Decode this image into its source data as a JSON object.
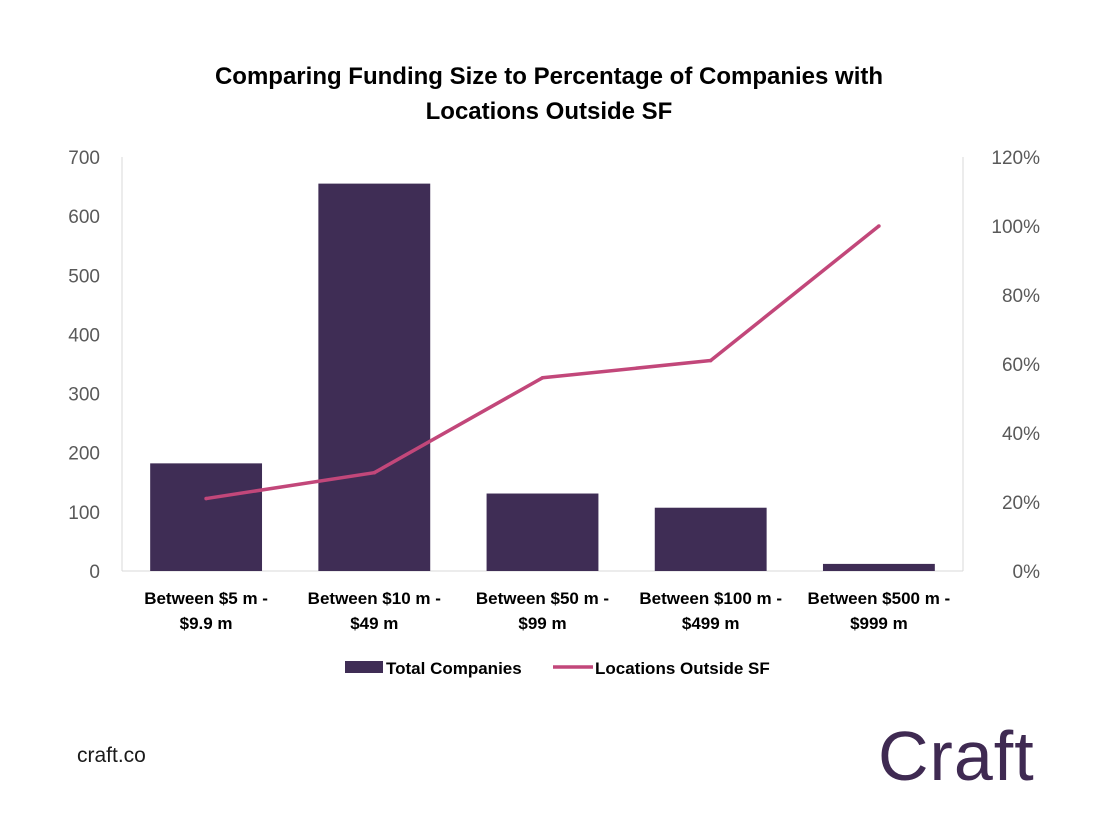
{
  "chart_data": {
    "type": "bar",
    "title": [
      "Comparing Funding Size to Percentage of Companies with",
      "Locations Outside SF"
    ],
    "categories": [
      [
        "Between  $5  m -",
        "$9.9  m"
      ],
      [
        "Between  $10  m -",
        "$49  m"
      ],
      [
        "Between  $50  m -",
        "$99  m"
      ],
      [
        "Between  $100  m -",
        "$499  m"
      ],
      [
        "Between  $500  m -",
        "$999  m"
      ]
    ],
    "series": [
      {
        "name": "Total Companies",
        "type": "bar",
        "axis": "left",
        "color": "#3f2d55",
        "values": [
          182,
          655,
          131,
          107,
          12
        ]
      },
      {
        "name": "Locations Outside SF",
        "type": "line",
        "axis": "right",
        "color": "#c2477a",
        "values": [
          0.21,
          0.285,
          0.56,
          0.61,
          1.0
        ]
      }
    ],
    "y_left": {
      "ylim": [
        0,
        700
      ],
      "ticks": [
        "0",
        "100",
        "200",
        "300",
        "400",
        "500",
        "600",
        "700"
      ]
    },
    "y_right": {
      "ylim": [
        0,
        1.2
      ],
      "ticks": [
        "0%",
        "20%",
        "40%",
        "60%",
        "80%",
        "100%",
        "120%"
      ]
    },
    "legend_position": "bottom",
    "grid": false
  },
  "footer": {
    "url": "craft.co",
    "logo": "Craft"
  }
}
